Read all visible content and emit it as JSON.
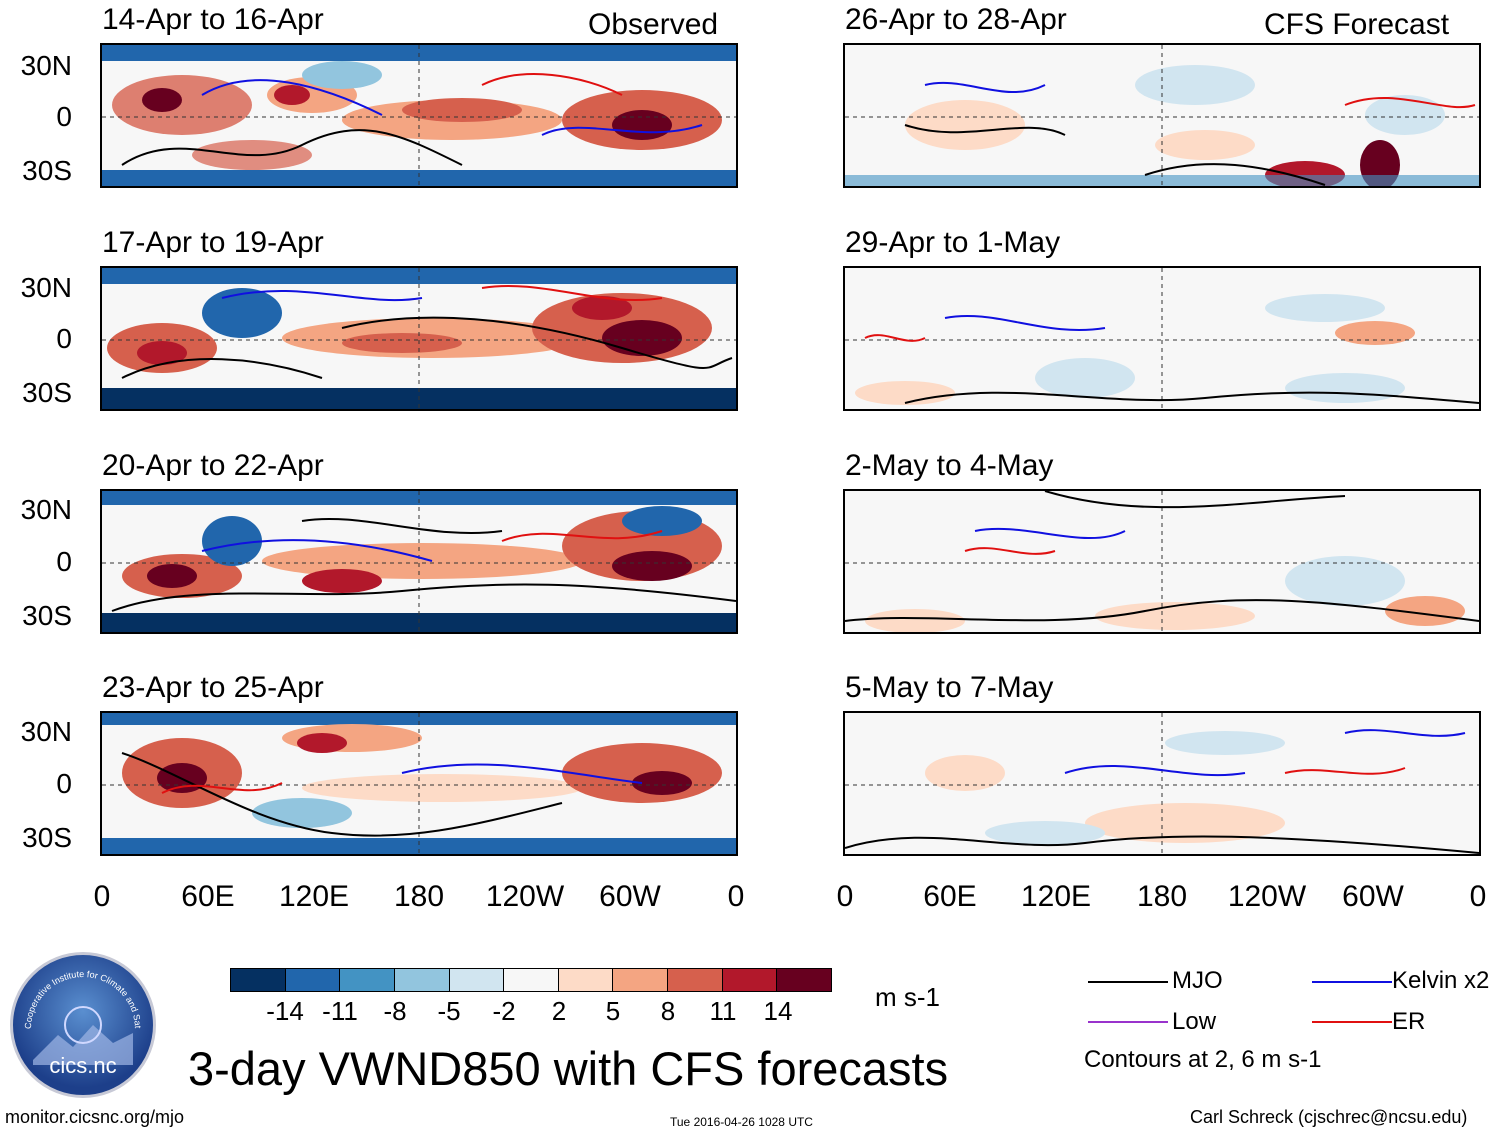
{
  "observed_label": "Observed",
  "forecast_label": "CFS Forecast",
  "observed_panels": [
    {
      "period": "14-Apr to 16-Apr"
    },
    {
      "period": "17-Apr to 19-Apr"
    },
    {
      "period": "20-Apr to 22-Apr"
    },
    {
      "period": "23-Apr to 25-Apr"
    }
  ],
  "forecast_panels": [
    {
      "period": "26-Apr to 28-Apr"
    },
    {
      "period": "29-Apr to 1-May"
    },
    {
      "period": "2-May to 4-May"
    },
    {
      "period": "5-May to 7-May"
    }
  ],
  "lat_labels": [
    "30N",
    "0",
    "30S"
  ],
  "lon_labels": [
    "0",
    "60E",
    "120E",
    "180",
    "120W",
    "60W",
    "0"
  ],
  "colorbar": {
    "colors": [
      "#053061",
      "#2166ac",
      "#4393c3",
      "#92c5de",
      "#d1e5f0",
      "#f7f7f7",
      "#fddbc7",
      "#f4a582",
      "#d6604d",
      "#b2182b",
      "#67001f"
    ],
    "labels": [
      "-14",
      "-11",
      "-8",
      "-5",
      "-2",
      "2",
      "5",
      "8",
      "11",
      "14"
    ],
    "units": "m s-1"
  },
  "legend": {
    "mjo": "MJO",
    "kelvin": "Kelvin x2",
    "low": "Low",
    "er": "ER",
    "contours_note": "Contours at 2, 6 m s-1",
    "colors": {
      "mjo": "#000000",
      "kelvin": "#1010e0",
      "low": "#9933cc",
      "er": "#e01010"
    }
  },
  "main_title": "3-day VWND850 with CFS forecasts",
  "footer": {
    "url": "monitor.cicsnc.org/mjo",
    "timestamp": "Tue 2016-04-26 1028 UTC",
    "credit": "Carl Schreck (cjschrec@ncsu.edu)"
  },
  "logo": {
    "arc_text": "Cooperative Institute for Climate and Satellites",
    "name": "cics.nc"
  }
}
